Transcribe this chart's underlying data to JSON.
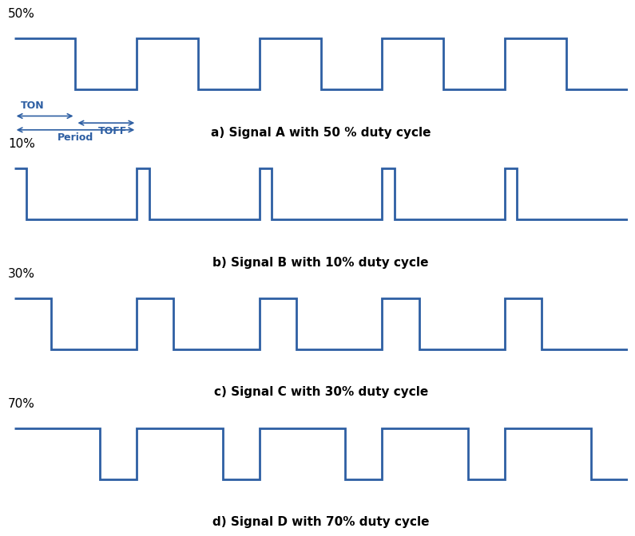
{
  "background_color": "#ffffff",
  "signal_color": "#2E5FA3",
  "text_color": "#000000",
  "label_color": "#1a1a8c",
  "fig_width": 8.0,
  "fig_height": 6.42,
  "signals": [
    {
      "duty": 0.5,
      "label_pct": "50%",
      "caption": "a) Signal A with 50 % duty cycle",
      "show_annotations": true,
      "num_periods": 5
    },
    {
      "duty": 0.1,
      "label_pct": "10%",
      "caption": "b) Signal B with 10% duty cycle",
      "show_annotations": false,
      "num_periods": 5
    },
    {
      "duty": 0.3,
      "label_pct": "30%",
      "caption": "c) Signal C with 30% duty cycle",
      "show_annotations": false,
      "num_periods": 5
    },
    {
      "duty": 0.7,
      "label_pct": "70%",
      "caption": "d) Signal D with 70% duty cycle",
      "show_annotations": false,
      "num_periods": 5
    }
  ],
  "line_width": 2.0,
  "annotation_fontsize": 9,
  "caption_fontsize": 11,
  "pct_fontsize": 11
}
